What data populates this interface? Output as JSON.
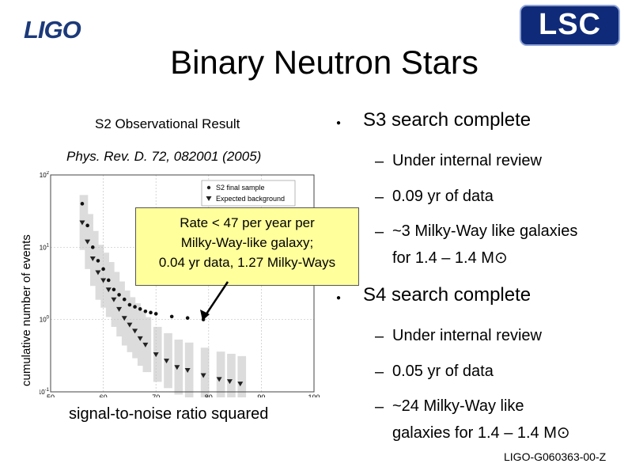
{
  "header": {
    "left_logo": "LIGO",
    "right_logo": "LSC",
    "title": "Binary Neutron Stars"
  },
  "left_panel": {
    "heading": "S2 Observational Result",
    "citation": "Phys. Rev. D. 72, 082001 (2005)",
    "callout_lines": [
      "Rate < 47 per year per",
      "Milky-Way-like galaxy;",
      "0.04 yr data, 1.27 Milky-Ways"
    ]
  },
  "right_panel": {
    "sections": [
      {
        "title": "S3 search complete",
        "items": [
          {
            "lines": [
              "Under internal review"
            ]
          },
          {
            "lines": [
              "0.09 yr of data"
            ]
          },
          {
            "lines": [
              "~3 Milky-Way like galaxies",
              "for 1.4 – 1.4 M⊙"
            ]
          }
        ]
      },
      {
        "title": "S4 search complete",
        "items": [
          {
            "lines": [
              "Under internal review"
            ]
          },
          {
            "lines": [
              "0.05 yr of data"
            ]
          },
          {
            "lines": [
              "~24 Milky-Way like",
              "galaxies for 1.4 – 1.4 M⊙"
            ]
          }
        ]
      }
    ]
  },
  "footer": {
    "doc_id": "LIGO-G060363-00-Z"
  },
  "chart_data": {
    "type": "scatter",
    "title": "",
    "xlabel": "signal-to-noise ratio squared",
    "ylabel": "cumulative number of events",
    "xlim": [
      50,
      100
    ],
    "ylim_log10": [
      -1,
      2
    ],
    "yscale": "log",
    "x_ticks": [
      50,
      60,
      70,
      80,
      90,
      100
    ],
    "y_tick_labels": [
      "10^-1",
      "10^0",
      "10^1",
      "10^2"
    ],
    "grid": true,
    "legend_position": "top-right",
    "series": [
      {
        "name": "S2 final sample",
        "marker": "dot",
        "x": [
          56,
          57,
          58,
          59,
          60,
          61,
          62,
          63,
          64,
          65,
          66,
          67,
          68,
          69,
          70,
          73,
          76,
          79
        ],
        "y": [
          40,
          20,
          10,
          6.5,
          5,
          3.5,
          2.6,
          2.2,
          1.9,
          1.6,
          1.5,
          1.4,
          1.3,
          1.25,
          1.2,
          1.1,
          1.05,
          1
        ]
      },
      {
        "name": "Expected background",
        "marker": "triangle-down",
        "x": [
          56,
          57,
          58,
          59,
          60,
          61,
          62,
          63,
          64,
          65,
          66,
          67,
          68,
          70,
          72,
          74,
          76,
          79,
          82,
          84,
          86
        ],
        "y": [
          22,
          12,
          7,
          4.5,
          3.5,
          2.6,
          1.9,
          1.4,
          1.05,
          0.85,
          0.7,
          0.55,
          0.45,
          0.33,
          0.27,
          0.22,
          0.2,
          0.17,
          0.15,
          0.14,
          0.13
        ]
      }
    ]
  }
}
